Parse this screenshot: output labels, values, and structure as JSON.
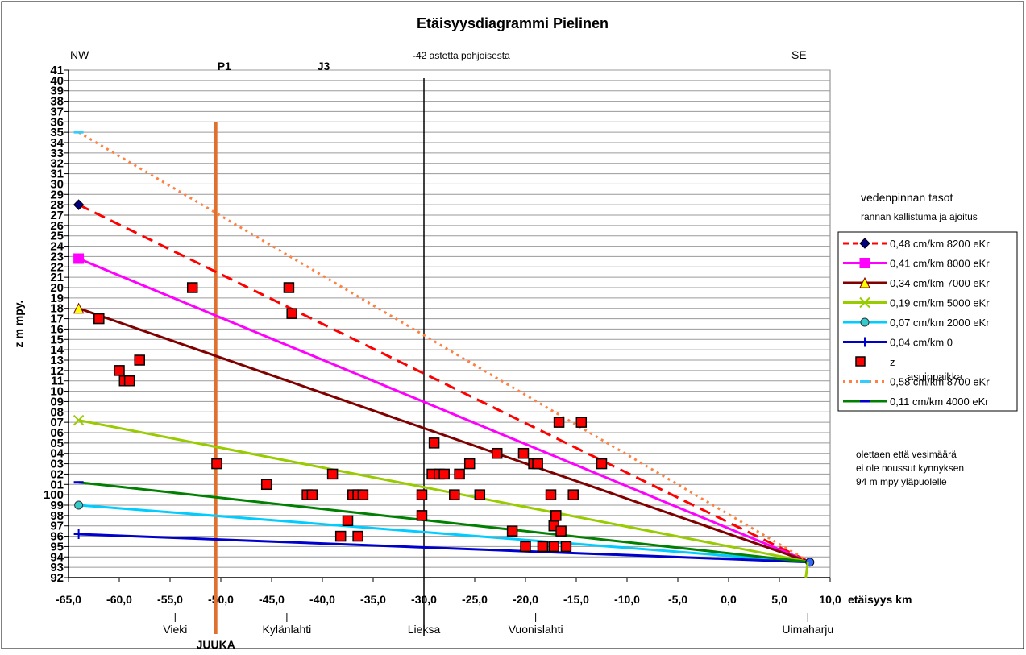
{
  "chart_data": {
    "type": "line",
    "title": "Etäisyysdiagrammi Pielinen",
    "subtitle": "-42 astetta pohjoisesta",
    "xlabel": "etäisyys km",
    "ylabel": "z m mpy.",
    "xlim": [
      -65,
      10
    ],
    "ylim": [
      92,
      141
    ],
    "grid": "horizontal",
    "legend_position": "right",
    "y_ticks": [
      "92",
      "93",
      "94",
      "95",
      "96",
      "97",
      "98",
      "99",
      "100",
      "101",
      "102",
      "103",
      "104",
      "105",
      "106",
      "107",
      "108",
      "109",
      "110",
      "111",
      "112",
      "113",
      "114",
      "115",
      "116",
      "117",
      "118",
      "119",
      "120",
      "121",
      "122",
      "123",
      "124",
      "125",
      "126",
      "127",
      "128",
      "129",
      "130",
      "131",
      "132",
      "133",
      "134",
      "135",
      "136",
      "137",
      "138",
      "139",
      "140",
      "141"
    ],
    "y_tick_labels": [
      "92",
      "93",
      "94",
      "95",
      "96",
      "97",
      "98",
      "99",
      "100",
      "01",
      "02",
      "03",
      "04",
      "05",
      "06",
      "07",
      "08",
      "09",
      "10",
      "11",
      "12",
      "13",
      "14",
      "15",
      "16",
      "17",
      "18",
      "19",
      "20",
      "21",
      "22",
      "23",
      "24",
      "25",
      "26",
      "27",
      "28",
      "29",
      "30",
      "31",
      "32",
      "33",
      "34",
      "35",
      "36",
      "37",
      "38",
      "39",
      "40",
      "41"
    ],
    "x_ticks": [
      -65,
      -60,
      -55,
      -50,
      -45,
      -40,
      -35,
      -30,
      -25,
      -20,
      -15,
      -10,
      -5,
      0,
      5,
      10
    ],
    "x_tick_labels": [
      "-65,0",
      "-60,0",
      "-55,0",
      "-50,0",
      "-45,0",
      "-40,0",
      "-35,0",
      "-30,0",
      "-25,0",
      "-20,0",
      "-15,0",
      "-10,0",
      "-5,0",
      "0,0",
      "5,0",
      "10,0"
    ],
    "legend_title": "vedenpinnan tasot",
    "legend_subtitle": "rannan kallistuma ja ajoitus",
    "series": [
      {
        "name": "0,48 cm/km 8200 eKr",
        "color": "#ff0000",
        "dash": "14,8",
        "marker": "diamond",
        "marker_color": "#000080",
        "x": [
          -64,
          8
        ],
        "y": [
          128,
          93.5
        ]
      },
      {
        "name": "0,41 cm/km 8000 eKr",
        "color": "#ff00ff",
        "dash": "",
        "marker": "square",
        "marker_color": "#ff00ff",
        "x": [
          -64,
          8
        ],
        "y": [
          122.8,
          93.5
        ]
      },
      {
        "name": "0,34 cm/km 7000 eKr",
        "color": "#800000",
        "dash": "",
        "marker": "triangle",
        "marker_color": "#ffff00",
        "x": [
          -64,
          8
        ],
        "y": [
          118,
          93.5
        ]
      },
      {
        "name": "0,19 cm/km 5000 eKr",
        "color": "#99cc00",
        "dash": "",
        "marker": "x",
        "marker_color": "#99cc00",
        "x": [
          -64,
          8
        ],
        "y": [
          107.2,
          93.5
        ]
      },
      {
        "name": "0,07 cm/km 2000 eKr",
        "color": "#00ccff",
        "dash": "",
        "marker": "circle",
        "marker_color": "#33cccc",
        "x": [
          -64,
          8
        ],
        "y": [
          99,
          93.5
        ]
      },
      {
        "name": "0,04 cm/km 0",
        "color": "#0000cc",
        "dash": "",
        "marker": "plus",
        "marker_color": "#0000cc",
        "x": [
          -64,
          8
        ],
        "y": [
          96.2,
          93.5
        ]
      },
      {
        "name": "0,58 cm/km 8700 eKr",
        "color": "#ff8040",
        "dash": "3,5",
        "marker": "dash",
        "marker_color": "#33ccff",
        "x": [
          -64,
          8
        ],
        "y": [
          135,
          93.5
        ]
      },
      {
        "name": "0,11 cm/km 4000 eKr",
        "color": "#008000",
        "dash": "",
        "marker": "dash",
        "marker_color": "#0000cc",
        "x": [
          -64,
          8
        ],
        "y": [
          101.2,
          93.5
        ]
      }
    ],
    "scatter": {
      "name": "z",
      "color": "#ff0000",
      "points": [
        [
          -62,
          117
        ],
        [
          -60,
          112
        ],
        [
          -59.5,
          111
        ],
        [
          -59,
          111
        ],
        [
          -58,
          113
        ],
        [
          -52.8,
          120
        ],
        [
          -50.4,
          103
        ],
        [
          -45.5,
          101
        ],
        [
          -43.3,
          120
        ],
        [
          -43,
          117.5
        ],
        [
          -41.5,
          100
        ],
        [
          -41,
          100
        ],
        [
          -39,
          102
        ],
        [
          -38.2,
          96
        ],
        [
          -37.5,
          97.5
        ],
        [
          -37,
          100
        ],
        [
          -36.5,
          96
        ],
        [
          -36.5,
          100
        ],
        [
          -36,
          100
        ],
        [
          -30.2,
          100
        ],
        [
          -30.2,
          98
        ],
        [
          -29.2,
          102
        ],
        [
          -29,
          105
        ],
        [
          -28.5,
          102
        ],
        [
          -28,
          102
        ],
        [
          -27,
          100
        ],
        [
          -26.5,
          102
        ],
        [
          -25.5,
          103
        ],
        [
          -24.5,
          100
        ],
        [
          -22.8,
          104
        ],
        [
          -21.3,
          96.5
        ],
        [
          -20.2,
          104
        ],
        [
          -20,
          95
        ],
        [
          -19.2,
          103
        ],
        [
          -18.8,
          103
        ],
        [
          -18.3,
          95
        ],
        [
          -17.5,
          100
        ],
        [
          -17.2,
          95
        ],
        [
          -17.2,
          97
        ],
        [
          -17,
          98
        ],
        [
          -16.7,
          107
        ],
        [
          -16.5,
          96.5
        ],
        [
          -16,
          95
        ],
        [
          -15.3,
          100
        ],
        [
          -14.5,
          107
        ],
        [
          -12.5,
          103
        ]
      ]
    },
    "vertical_lines": [
      {
        "x": -50.5,
        "label": "P1",
        "color": "#e07030"
      },
      {
        "x": -30,
        "label": "",
        "color": "#000000"
      }
    ],
    "labels": {
      "nw": "NW",
      "se": "SE",
      "j3": "J3",
      "asuinpaikka": "asuinpaikka",
      "note_lines": [
        "olettaen että vesimäärä",
        "ei ole noussut kynnyksen",
        "94 m mpy yläpuolelle"
      ]
    },
    "places": [
      {
        "name": "Vieki",
        "x": -54.5
      },
      {
        "name": "Kylänlahti",
        "x": -43.5
      },
      {
        "name": "Lieksa",
        "x": -30
      },
      {
        "name": "Vuonislahti",
        "x": -19
      },
      {
        "name": "Uimaharju",
        "x": 7.8
      }
    ],
    "juuka": "JUUKA"
  }
}
